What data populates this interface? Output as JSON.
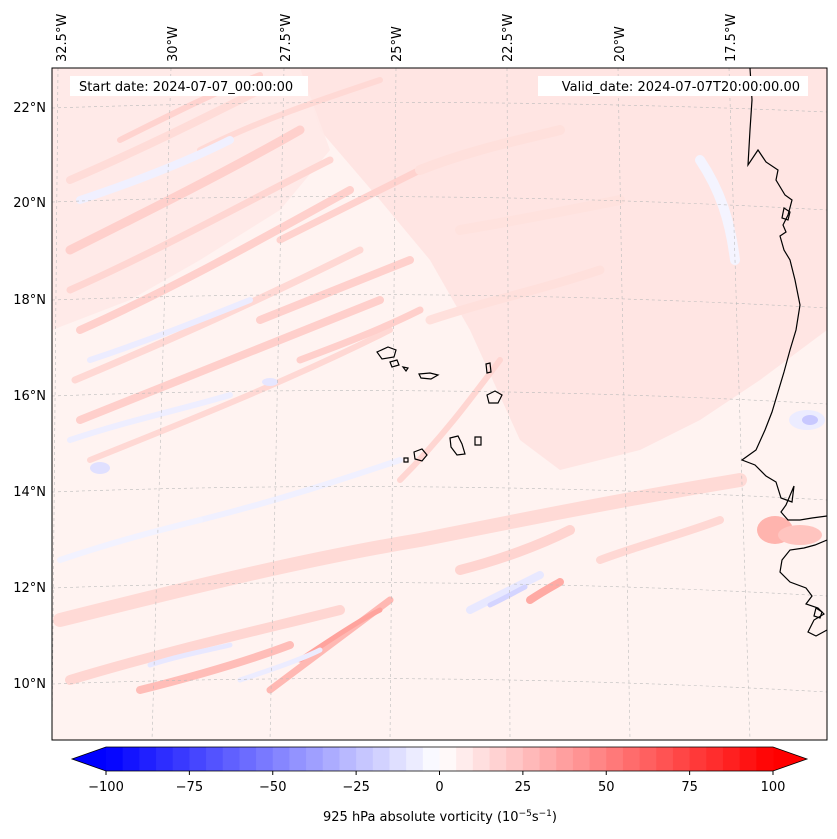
{
  "map": {
    "header": {
      "start_date": "Start date: 2024-07-07_00:00:00",
      "valid_date": "Valid_date: 2024-07-07T20:00:00.00"
    },
    "lon_labels": [
      "32.5°W",
      "30°W",
      "27.5°W",
      "25°W",
      "22.5°W",
      "20°W",
      "17.5°W"
    ],
    "lat_labels": [
      "22°N",
      "20°N",
      "18°N",
      "16°N",
      "14°N",
      "12°N",
      "10°N"
    ],
    "field": "925 hPa absolute vorticity",
    "colormap": "bwr",
    "palette": {
      "negative": "#0000ff",
      "zero": "#ffffff",
      "positive": "#ff0000"
    }
  },
  "colorbar": {
    "min": -100,
    "max": 100,
    "ticks": [
      "−100",
      "−75",
      "−50",
      "−25",
      "0",
      "25",
      "50",
      "75",
      "100"
    ],
    "label_main": "925 hPa absolute vorticity (10",
    "label_exp1": "−5",
    "label_mid": "s",
    "label_exp2": "−1",
    "label_end": ")"
  }
}
